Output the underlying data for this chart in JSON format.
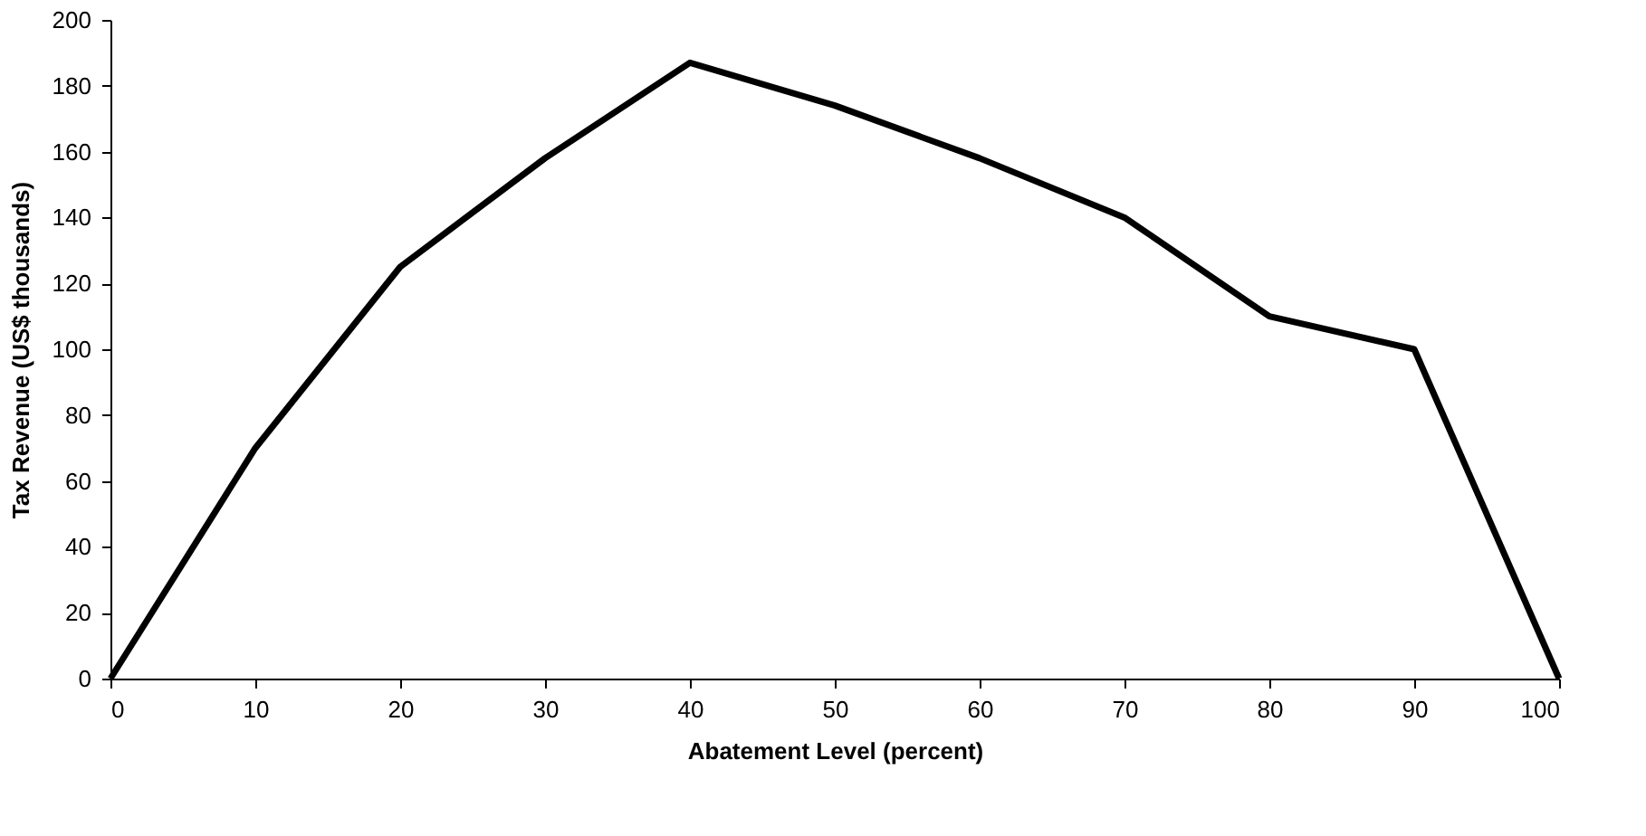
{
  "chart_data": {
    "type": "line",
    "xlabel": "Abatement Level (percent)",
    "ylabel": "Tax Revenue (US$ thousands)",
    "x": [
      0,
      10,
      20,
      30,
      40,
      50,
      60,
      70,
      80,
      90,
      100
    ],
    "series": [
      {
        "color": "#000000",
        "values": [
          0,
          70,
          125,
          158,
          187,
          174,
          158,
          140,
          110,
          100,
          0
        ]
      }
    ],
    "xlim": [
      0,
      100
    ],
    "xticks": [
      0,
      10,
      20,
      30,
      40,
      50,
      60,
      70,
      80,
      90,
      100
    ],
    "ylim": [
      0,
      200
    ],
    "yticks": [
      0,
      20,
      40,
      60,
      80,
      100,
      120,
      140,
      160,
      180,
      200
    ],
    "grid": false,
    "legend": false,
    "marker": "none",
    "line_style": "solid"
  }
}
